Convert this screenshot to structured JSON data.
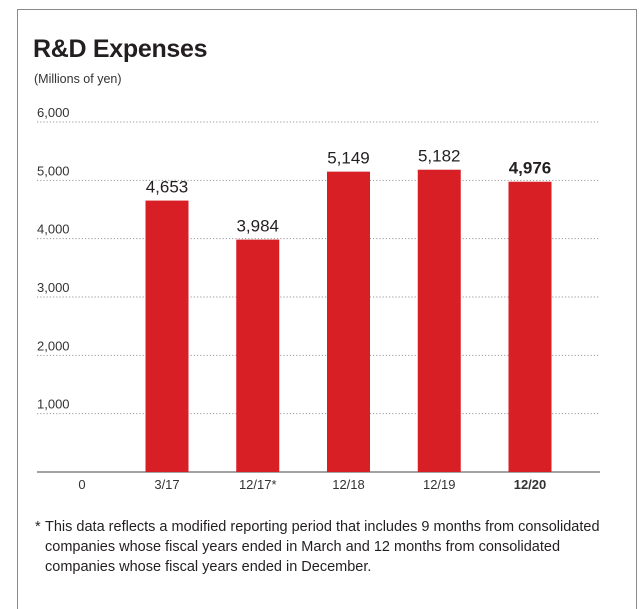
{
  "chart_data": {
    "type": "bar",
    "title": "R&D Expenses",
    "unit": "(Millions of yen)",
    "categories": [
      "3/17",
      "12/17*",
      "12/18",
      "12/19",
      "12/20"
    ],
    "values": [
      4653,
      3984,
      5149,
      5182,
      4976
    ],
    "value_labels": [
      "4,653",
      "3,984",
      "5,149",
      "5,182",
      "4,976"
    ],
    "highlight_index": 4,
    "y_ticks": [
      0,
      1000,
      2000,
      3000,
      4000,
      5000,
      6000
    ],
    "y_tick_labels": [
      "0",
      "1,000",
      "2,000",
      "3,000",
      "4,000",
      "5,000",
      "6,000"
    ],
    "ylim": [
      0,
      6000
    ],
    "grid": true,
    "bar_color": "#d91f26"
  },
  "footnote": {
    "mark": "*",
    "text": "This data reflects a modified reporting period that includes 9 months from consolidated companies whose fiscal years ended in March and 12 months from consolidated companies whose fiscal years ended in December."
  }
}
